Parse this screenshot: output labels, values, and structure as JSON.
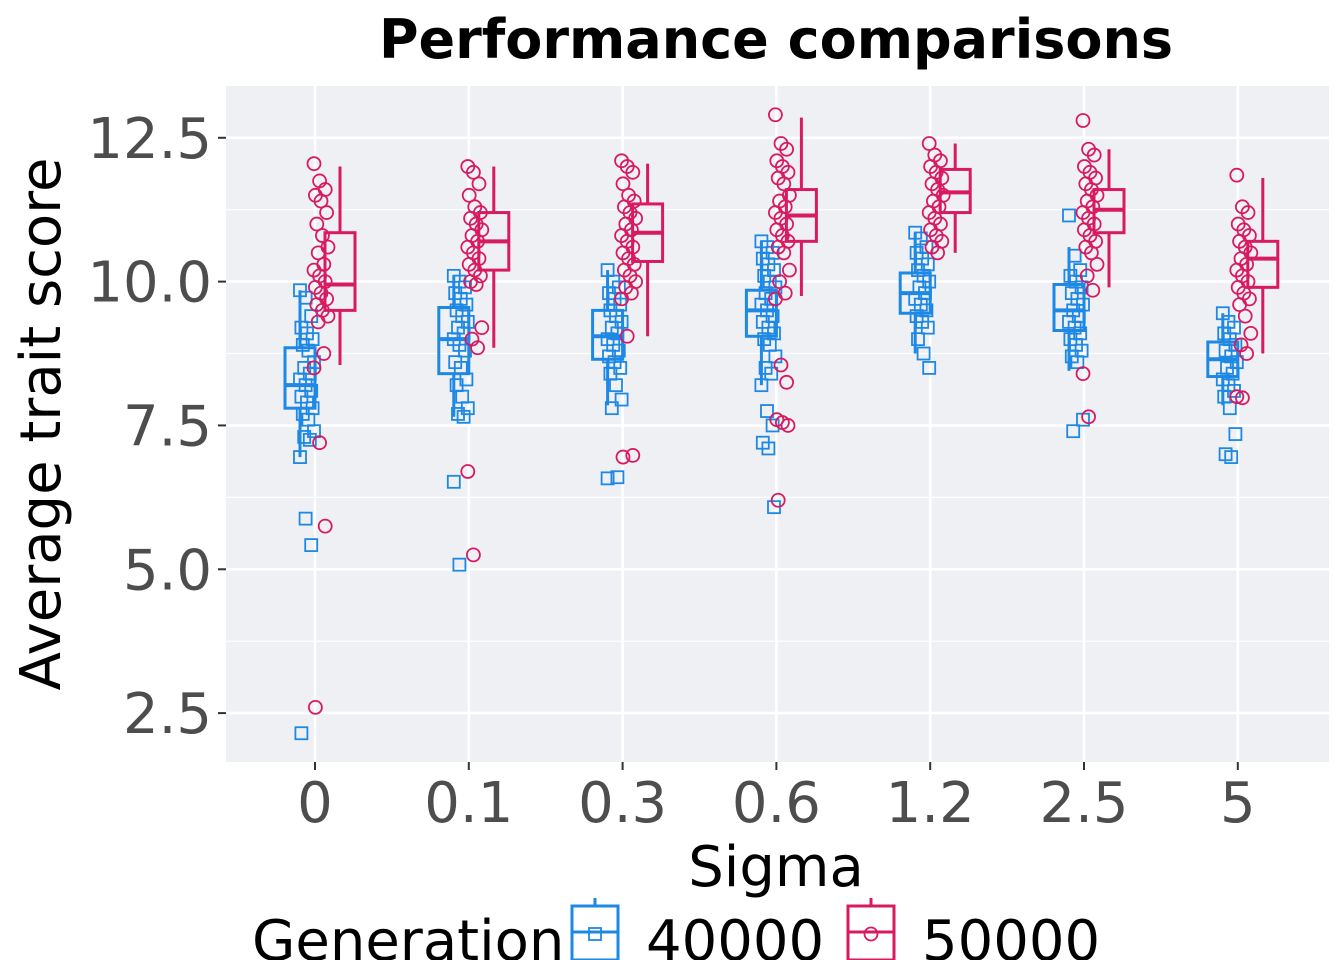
{
  "chart_data": {
    "type": "box",
    "title": "Performance comparisons",
    "xlabel": "Sigma",
    "ylabel": "Average trait score",
    "categories": [
      "0",
      "0.1",
      "0.3",
      "0.6",
      "1.2",
      "2.5",
      "5"
    ],
    "y_ticks": [
      "2.5",
      "5.0",
      "7.5",
      "10.0",
      "12.5"
    ],
    "y_tick_values": [
      2.5,
      5.0,
      7.5,
      10.0,
      12.5
    ],
    "ylim": [
      1.65,
      13.4
    ],
    "grid": true,
    "legend": {
      "title": "Generation",
      "position": "bottom"
    },
    "series": [
      {
        "name": "40000",
        "color": "#1e88e5",
        "marker": "square",
        "boxes": [
          {
            "min": 6.95,
            "q1": 7.8,
            "median": 8.2,
            "q3": 8.85,
            "max": 9.85,
            "points": [
              9.85,
              9.72,
              9.4,
              9.2,
              9.1,
              9.0,
              8.9,
              8.8,
              8.6,
              8.5,
              8.4,
              8.3,
              8.2,
              8.1,
              8.0,
              7.9,
              7.8,
              7.7,
              7.6,
              7.4,
              7.3,
              7.25,
              6.95,
              5.88,
              5.42,
              2.15
            ]
          },
          {
            "min": 7.65,
            "q1": 8.4,
            "median": 9.0,
            "q3": 9.55,
            "max": 10.1,
            "points": [
              10.1,
              10.0,
              9.9,
              9.8,
              9.7,
              9.6,
              9.5,
              9.4,
              9.3,
              9.2,
              9.1,
              9.0,
              8.9,
              8.8,
              8.6,
              8.5,
              8.3,
              8.2,
              8.0,
              7.8,
              7.7,
              7.65,
              6.52,
              5.08
            ]
          },
          {
            "min": 7.85,
            "q1": 8.65,
            "median": 9.05,
            "q3": 9.5,
            "max": 10.2,
            "points": [
              10.2,
              10.0,
              9.9,
              9.8,
              9.7,
              9.6,
              9.5,
              9.4,
              9.3,
              9.2,
              9.1,
              9.0,
              8.9,
              8.8,
              8.7,
              8.6,
              8.5,
              8.4,
              8.2,
              7.95,
              7.8,
              6.6,
              6.58
            ]
          },
          {
            "min": 8.2,
            "q1": 9.05,
            "median": 9.5,
            "q3": 9.85,
            "max": 10.7,
            "points": [
              10.7,
              10.6,
              10.5,
              10.4,
              10.3,
              10.2,
              10.1,
              10.0,
              9.9,
              9.8,
              9.7,
              9.6,
              9.5,
              9.4,
              9.3,
              9.2,
              9.1,
              9.0,
              8.9,
              8.7,
              8.5,
              8.4,
              8.2,
              7.75,
              7.5,
              7.2,
              7.1,
              6.08
            ]
          },
          {
            "min": 8.75,
            "q1": 9.45,
            "median": 9.8,
            "q3": 10.15,
            "max": 10.85,
            "points": [
              10.85,
              10.75,
              10.6,
              10.5,
              10.4,
              10.3,
              10.2,
              10.1,
              10.0,
              9.9,
              9.8,
              9.7,
              9.6,
              9.5,
              9.4,
              9.3,
              9.2,
              9.0,
              8.75,
              8.5
            ]
          },
          {
            "min": 8.45,
            "q1": 9.15,
            "median": 9.5,
            "q3": 9.95,
            "max": 10.6,
            "points": [
              11.15,
              10.45,
              10.2,
              10.1,
              10.0,
              9.9,
              9.8,
              9.7,
              9.6,
              9.5,
              9.4,
              9.3,
              9.2,
              9.1,
              9.0,
              8.9,
              8.8,
              8.7,
              8.6,
              7.6,
              7.4
            ]
          },
          {
            "min": 7.85,
            "q1": 8.35,
            "median": 8.65,
            "q3": 8.95,
            "max": 9.45,
            "points": [
              9.45,
              9.3,
              9.2,
              9.1,
              9.0,
              8.9,
              8.8,
              8.7,
              8.6,
              8.5,
              8.4,
              8.3,
              8.2,
              8.1,
              8.0,
              7.8,
              7.35,
              7.0,
              6.95
            ]
          }
        ]
      },
      {
        "name": "50000",
        "color": "#d81b60",
        "marker": "circle",
        "boxes": [
          {
            "min": 8.55,
            "q1": 9.5,
            "median": 9.95,
            "q3": 10.85,
            "max": 12.0,
            "points": [
              12.05,
              11.75,
              11.6,
              11.5,
              11.4,
              11.2,
              11.0,
              10.8,
              10.6,
              10.5,
              10.3,
              10.2,
              10.1,
              10.0,
              9.9,
              9.8,
              9.7,
              9.6,
              9.5,
              9.4,
              9.3,
              8.75,
              8.5,
              7.2,
              5.75,
              2.6
            ]
          },
          {
            "min": 8.85,
            "q1": 10.2,
            "median": 10.7,
            "q3": 11.2,
            "max": 12.0,
            "points": [
              12.0,
              11.9,
              11.7,
              11.5,
              11.3,
              11.2,
              11.1,
              11.0,
              10.9,
              10.8,
              10.7,
              10.6,
              10.5,
              10.4,
              10.3,
              10.2,
              10.1,
              10.0,
              9.95,
              9.2,
              9.0,
              8.85,
              6.7,
              5.25
            ]
          },
          {
            "min": 9.05,
            "q1": 10.35,
            "median": 10.85,
            "q3": 11.35,
            "max": 12.05,
            "points": [
              12.1,
              12.0,
              11.9,
              11.7,
              11.5,
              11.4,
              11.3,
              11.2,
              11.1,
              11.0,
              10.9,
              10.8,
              10.7,
              10.6,
              10.5,
              10.4,
              10.3,
              10.2,
              10.1,
              10.0,
              9.9,
              9.8,
              9.7,
              9.05,
              6.98,
              6.95
            ]
          },
          {
            "min": 9.75,
            "q1": 10.7,
            "median": 11.15,
            "q3": 11.6,
            "max": 12.85,
            "points": [
              12.9,
              12.4,
              12.3,
              12.1,
              12.0,
              11.9,
              11.8,
              11.7,
              11.5,
              11.4,
              11.3,
              11.2,
              11.1,
              11.0,
              10.9,
              10.8,
              10.7,
              10.6,
              10.5,
              10.2,
              10.0,
              9.8,
              9.7,
              8.55,
              8.25,
              7.6,
              7.55,
              7.5,
              6.2
            ]
          },
          {
            "min": 10.5,
            "q1": 11.2,
            "median": 11.55,
            "q3": 11.95,
            "max": 12.4,
            "points": [
              12.4,
              12.2,
              12.1,
              12.0,
              11.9,
              11.8,
              11.7,
              11.6,
              11.5,
              11.4,
              11.3,
              11.2,
              11.1,
              11.0,
              10.9,
              10.8,
              10.7,
              10.6,
              10.5
            ]
          },
          {
            "min": 9.9,
            "q1": 10.85,
            "median": 11.25,
            "q3": 11.6,
            "max": 12.3,
            "points": [
              12.8,
              12.3,
              12.2,
              12.0,
              11.9,
              11.8,
              11.7,
              11.6,
              11.5,
              11.4,
              11.3,
              11.2,
              11.1,
              11.0,
              10.9,
              10.8,
              10.7,
              10.6,
              10.5,
              10.3,
              10.1,
              9.85,
              8.4,
              7.65
            ]
          },
          {
            "min": 8.75,
            "q1": 9.9,
            "median": 10.4,
            "q3": 10.7,
            "max": 11.8,
            "points": [
              11.85,
              11.3,
              11.2,
              11.0,
              10.9,
              10.8,
              10.7,
              10.6,
              10.5,
              10.4,
              10.3,
              10.2,
              10.1,
              10.0,
              9.9,
              9.8,
              9.7,
              9.6,
              9.4,
              9.1,
              8.9,
              8.75,
              8.0,
              7.98
            ]
          }
        ]
      }
    ]
  }
}
